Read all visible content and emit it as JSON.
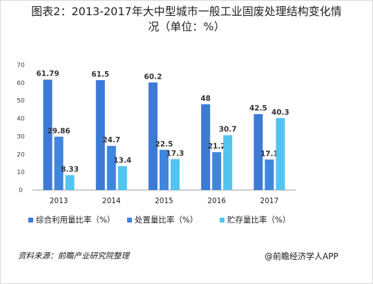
{
  "title_line1": "图表2：2013-2017年大中型城市一般工业固废处理结构变化情",
  "title_line2": "况（单位：%）",
  "source": "资料来源：前瞻产业研究院整理",
  "brand": "@前瞻经济学人APP",
  "colors": {
    "series1": "#3d7ad6",
    "series2": "#3f86de",
    "series3": "#52c4f2",
    "axis": "#444444",
    "text": "#222222"
  },
  "chart_data": {
    "type": "bar",
    "categories": [
      "2013",
      "2014",
      "2015",
      "2016",
      "2017"
    ],
    "series": [
      {
        "name": "综合利用量比率（%）",
        "values": [
          61.79,
          61.5,
          60.2,
          48,
          42.5
        ]
      },
      {
        "name": "处置量比率（%）",
        "values": [
          29.86,
          24.7,
          22.5,
          21.2,
          17.1
        ]
      },
      {
        "name": "贮存量比率（%）",
        "values": [
          8.33,
          13.4,
          17.3,
          30.7,
          40.3
        ]
      }
    ],
    "value_labels": [
      [
        "61.79",
        "61.5",
        "60.2",
        "48",
        "42.5"
      ],
      [
        "29.86",
        "24.7",
        "22.5",
        "21.2",
        "17.1"
      ],
      [
        "8.33",
        "13.4",
        "17.3",
        "30.7",
        "40.3"
      ]
    ],
    "yticks": [
      "0",
      "10",
      "20",
      "30",
      "40",
      "50",
      "60",
      "70"
    ],
    "ylim": [
      0,
      70
    ],
    "grid": false,
    "legend": "bottom"
  }
}
